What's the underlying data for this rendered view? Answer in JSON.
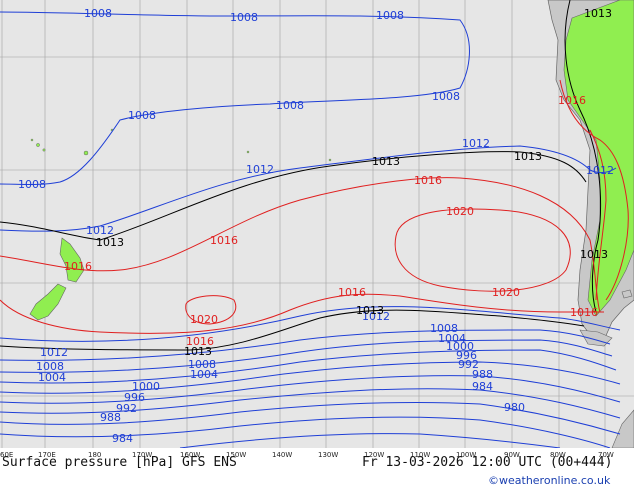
{
  "map": {
    "product": "Surface pressure [hPa] GFS ENS",
    "valid_time": "Fr 13-03-2026 12:00 UTC (00+444)",
    "credit": "©weatheronline.co.uk",
    "colors": {
      "ocean": "#e6e6e6",
      "land_ensemble_high": "#90ee50",
      "land_other": "#c8c8c8",
      "coast": "#666666",
      "grid": "#9a9a9a",
      "isobar_low": "#1f3fd6",
      "isobar_1013": "#000000",
      "isobar_high": "#e02020"
    },
    "longitude_labels": [
      "60E",
      "170E",
      "180",
      "170W",
      "160W",
      "150W",
      "140W",
      "130W",
      "120W",
      "110W",
      "100W",
      "90W",
      "80W",
      "70W"
    ],
    "isobar_labels": {
      "top_1008": [
        "1008",
        "1008",
        "1008",
        "1008",
        "1008",
        "1008",
        "1008"
      ],
      "mid_1012": [
        "1012",
        "1012",
        "1012",
        "1012",
        "1012",
        "1012"
      ],
      "mid_1013": [
        "1013",
        "1013",
        "1013",
        "1013",
        "1013",
        "1013",
        "1013"
      ],
      "high_1016": [
        "1016",
        "1016",
        "1016",
        "1016",
        "1016",
        "1016",
        "1016"
      ],
      "high_1020": [
        "1020",
        "1020",
        "1020"
      ],
      "south": [
        "1008",
        "1004",
        "1008",
        "1004",
        "1004",
        "1000",
        "996",
        "992",
        "988",
        "984",
        "1000",
        "996",
        "992",
        "988",
        "984",
        "980"
      ]
    }
  }
}
